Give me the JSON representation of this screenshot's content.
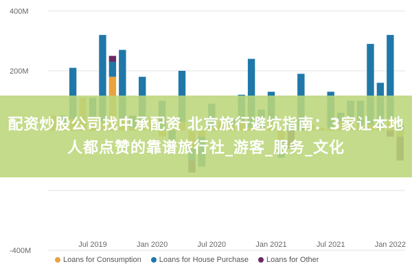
{
  "overlay": {
    "headline": "配资炒股公司找中承配资 北京旅行避坑指南：3家让本地人都点赞的靠谱旅行社_游客_服务_文化"
  },
  "chart_data": {
    "type": "bar",
    "stacked": true,
    "title": "",
    "xlabel": "",
    "ylabel": "",
    "ylim": [
      -480,
      480
    ],
    "grid": true,
    "legend_position": "bottom",
    "y_ticks": [
      {
        "value": 400,
        "label": "400M"
      },
      {
        "value": 200,
        "label": "200M"
      },
      {
        "value": 0,
        "label": ""
      },
      {
        "value": -200,
        "label": ""
      },
      {
        "value": -400,
        "label": "-400M"
      }
    ],
    "x_tick_labels": [
      {
        "index": 4,
        "label": "Jul 2019"
      },
      {
        "index": 10,
        "label": "Jan 2020"
      },
      {
        "index": 16,
        "label": "Jul 2020"
      },
      {
        "index": 22,
        "label": "Jan 2021"
      },
      {
        "index": 28,
        "label": "Jul 2021"
      },
      {
        "index": 34,
        "label": "Jan 2022"
      }
    ],
    "categories": [
      "2019-03",
      "2019-04",
      "2019-05",
      "2019-06",
      "2019-07",
      "2019-08",
      "2019-09",
      "2019-10",
      "2019-11",
      "2019-12",
      "2020-01",
      "2020-02",
      "2020-03",
      "2020-04",
      "2020-05",
      "2020-06",
      "2020-07",
      "2020-08",
      "2020-09",
      "2020-10",
      "2020-11",
      "2020-12",
      "2021-01",
      "2021-02",
      "2021-03",
      "2021-04",
      "2021-05",
      "2021-06",
      "2021-07",
      "2021-08",
      "2021-09",
      "2021-10",
      "2021-11",
      "2021-12",
      "2022-01",
      "2022-02"
    ],
    "series": [
      {
        "name": "Loans for Consumption",
        "color": "#e8a33d",
        "values": [
          50,
          20,
          40,
          110,
          40,
          30,
          180,
          40,
          10,
          30,
          40,
          -20,
          10,
          30,
          -60,
          -20,
          10,
          30,
          20,
          30,
          10,
          10,
          30,
          -30,
          0,
          0,
          20,
          10,
          10,
          30,
          40,
          20,
          20,
          10,
          40,
          -20
        ]
      },
      {
        "name": "Loans for House Purchase",
        "color": "#1f78a8",
        "values": [
          0,
          30,
          170,
          0,
          70,
          290,
          50,
          230,
          40,
          150,
          0,
          100,
          -30,
          170,
          -40,
          -100,
          80,
          0,
          20,
          90,
          230,
          60,
          100,
          -60,
          30,
          190,
          0,
          0,
          120,
          30,
          60,
          80,
          270,
          150,
          280,
          20
        ]
      },
      {
        "name": "Loans for Other",
        "color": "#6a2a66",
        "values": [
          0,
          0,
          0,
          0,
          0,
          0,
          20,
          0,
          0,
          0,
          0,
          0,
          0,
          0,
          -40,
          0,
          0,
          0,
          0,
          0,
          0,
          0,
          0,
          0,
          -60,
          0,
          0,
          0,
          0,
          0,
          0,
          0,
          0,
          0,
          -20,
          -80
        ]
      }
    ]
  }
}
